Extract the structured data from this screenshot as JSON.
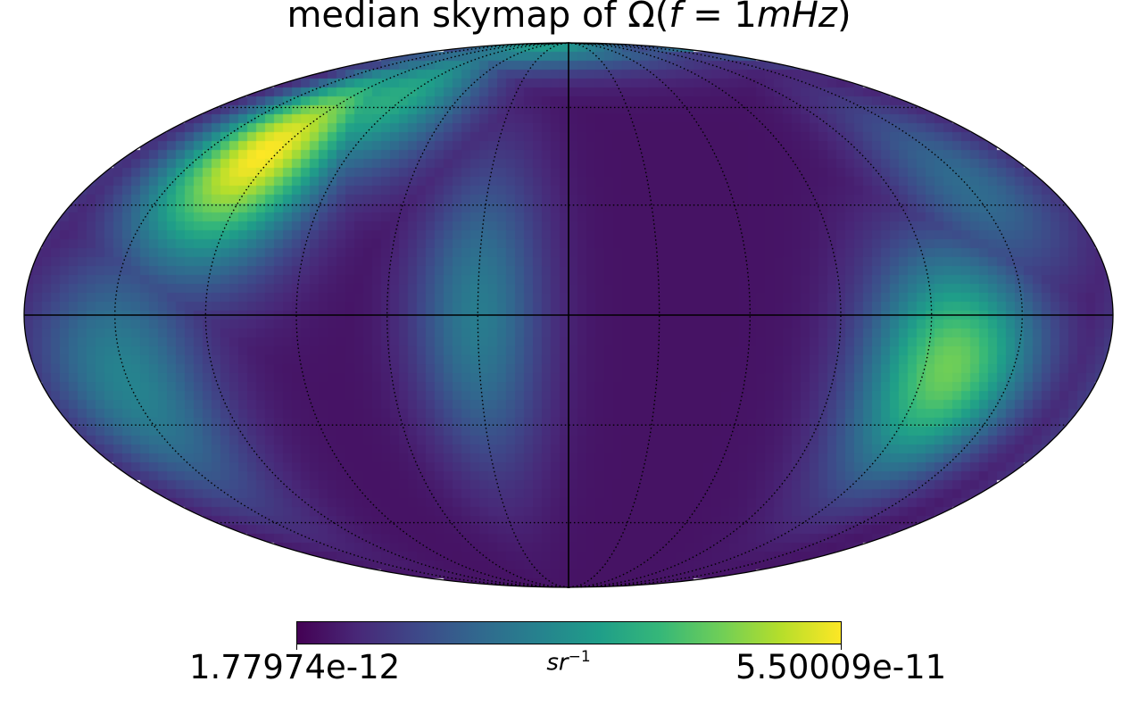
{
  "chart_data": {
    "type": "heatmap",
    "projection": "mollweide",
    "title_prefix": "median skymap of ",
    "title_math": "Ω(",
    "title_var": "f",
    "title_eq": " = 1",
    "title_unit": "mHz",
    "title_close": ")",
    "colormap": "viridis",
    "colorbar": {
      "min_label": "1.77974e-12",
      "max_label": "5.50009e-11",
      "min": 1.77974e-12,
      "max": 5.50009e-11,
      "unit_base": "sr",
      "unit_exp": "−1"
    },
    "graticule": {
      "meridian_step_deg": 30,
      "parallel_step_deg": 30,
      "style": "dotted",
      "prime_lines": "solid"
    },
    "hotspots": [
      {
        "lon": 125,
        "lat": 45,
        "level": 1.0,
        "spread_lon": 22,
        "spread_lat": 22,
        "note": "bright yellow lobe, upper left"
      },
      {
        "lon": 98,
        "lat": 62,
        "level": 0.62,
        "spread_lon": 28,
        "spread_lat": 18,
        "note": "green arc toward top"
      },
      {
        "lon": 45,
        "lat": 88,
        "level": 0.55,
        "spread_lon": 90,
        "spread_lat": 10,
        "note": "top cap"
      },
      {
        "lon": -128,
        "lat": -14,
        "level": 0.78,
        "spread_lon": 20,
        "spread_lat": 22,
        "note": "green lobe, right"
      },
      {
        "lon": 150,
        "lat": -18,
        "level": 0.45,
        "spread_lon": 20,
        "spread_lat": 25,
        "note": "left teal"
      },
      {
        "lon": 30,
        "lat": 0,
        "level": 0.42,
        "spread_lon": 15,
        "spread_lat": 30,
        "note": "center teal"
      },
      {
        "lon": -150,
        "lat": 35,
        "level": 0.35,
        "spread_lon": 20,
        "spread_lat": 20,
        "note": "right upper teal"
      }
    ]
  }
}
